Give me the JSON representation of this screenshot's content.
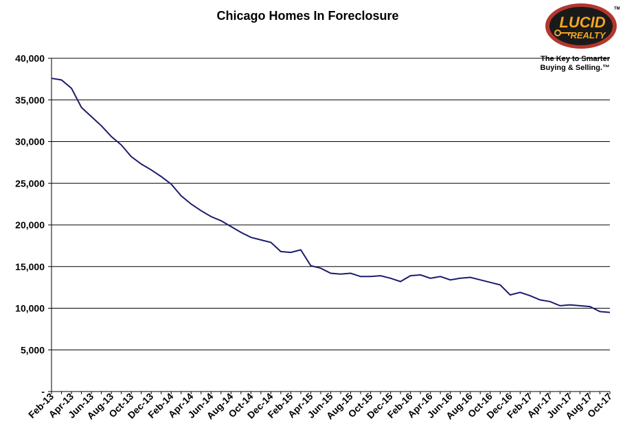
{
  "chart_data": {
    "type": "line",
    "title": "Chicago Homes In Foreclosure",
    "xlabel": "",
    "ylabel": "",
    "ylim": [
      0,
      40000
    ],
    "yticks": [
      0,
      5000,
      10000,
      15000,
      20000,
      25000,
      30000,
      35000,
      40000
    ],
    "ytick_labels": [
      "-",
      "5,000",
      "10,000",
      "15,000",
      "20,000",
      "25,000",
      "30,000",
      "35,000",
      "40,000"
    ],
    "grid": true,
    "line_color": "#1a1a6e",
    "x": [
      "Feb-13",
      "Mar-13",
      "Apr-13",
      "May-13",
      "Jun-13",
      "Jul-13",
      "Aug-13",
      "Sep-13",
      "Oct-13",
      "Nov-13",
      "Dec-13",
      "Jan-14",
      "Feb-14",
      "Mar-14",
      "Apr-14",
      "May-14",
      "Jun-14",
      "Jul-14",
      "Aug-14",
      "Sep-14",
      "Oct-14",
      "Nov-14",
      "Dec-14",
      "Jan-15",
      "Feb-15",
      "Mar-15",
      "Apr-15",
      "May-15",
      "Jun-15",
      "Jul-15",
      "Aug-15",
      "Sep-15",
      "Oct-15",
      "Nov-15",
      "Dec-15",
      "Jan-16",
      "Feb-16",
      "Mar-16",
      "Apr-16",
      "May-16",
      "Jun-16",
      "Jul-16",
      "Aug-16",
      "Sep-16",
      "Oct-16",
      "Nov-16",
      "Dec-16",
      "Jan-17",
      "Feb-17",
      "Mar-17",
      "Apr-17",
      "May-17",
      "Jun-17",
      "Jul-17",
      "Aug-17",
      "Sep-17",
      "Oct-17"
    ],
    "xtick_labels": [
      "Feb-13",
      "Apr-13",
      "Jun-13",
      "Aug-13",
      "Oct-13",
      "Dec-13",
      "Feb-14",
      "Apr-14",
      "Jun-14",
      "Aug-14",
      "Oct-14",
      "Dec-14",
      "Feb-15",
      "Apr-15",
      "Jun-15",
      "Aug-15",
      "Oct-15",
      "Dec-15",
      "Feb-16",
      "Apr-16",
      "Jun-16",
      "Aug-16",
      "Oct-16",
      "Dec-16",
      "Feb-17",
      "Apr-17",
      "Jun-17",
      "Aug-17",
      "Oct-17"
    ],
    "series": [
      {
        "values": [
          37600,
          37400,
          36400,
          34100,
          33000,
          31900,
          30600,
          29600,
          28200,
          27300,
          26600,
          25800,
          24900,
          23500,
          22500,
          21700,
          21000,
          20500,
          19800,
          19100,
          18500,
          18200,
          17900,
          16800,
          16700,
          17000,
          15100,
          14800,
          14200,
          14100,
          14200,
          13800,
          13800,
          13900,
          13600,
          13200,
          13900,
          14000,
          13600,
          13800,
          13400,
          13600,
          13700,
          13400,
          13100,
          12800,
          11600,
          11900,
          11500,
          11000,
          10800,
          10300,
          10400,
          10300,
          10200,
          9600,
          9500
        ]
      }
    ]
  },
  "logo": {
    "brand_top": "LUCID",
    "brand_bottom": "REALTY",
    "tm": "TM",
    "tagline_line1": "The Key to Smarter",
    "tagline_line2": "Buying & Selling.™",
    "ring_color": "#b3372f",
    "fill_color": "#1a1a1a",
    "text_color": "#f5a623"
  }
}
